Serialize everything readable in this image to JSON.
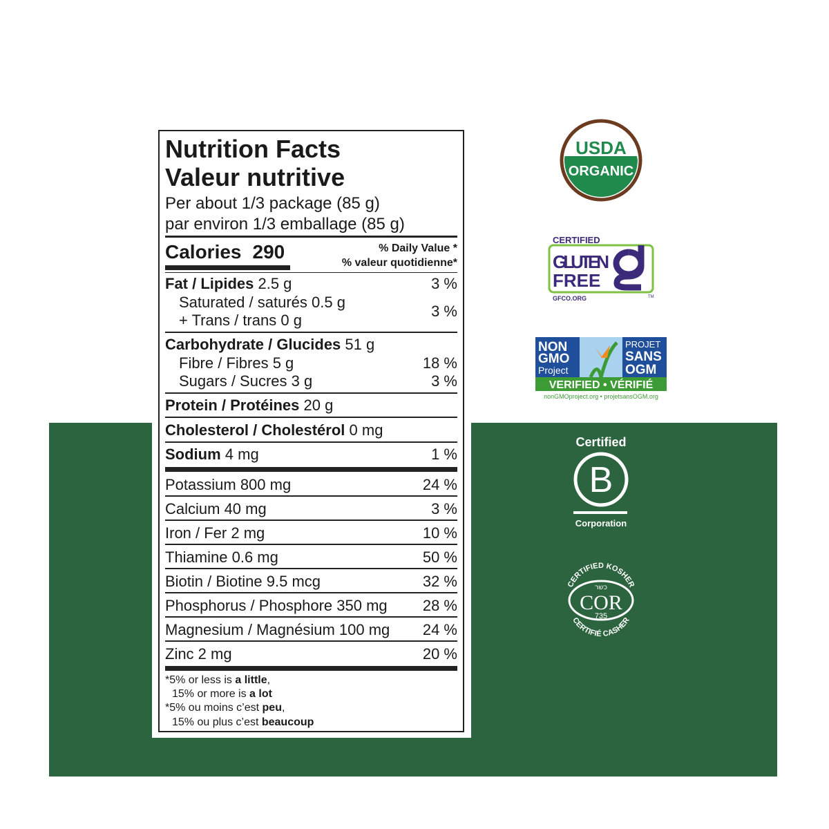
{
  "label": {
    "title_en": "Nutrition Facts",
    "title_fr": "Valeur nutritive",
    "serving_en": "Per about 1/3 package (85 g)",
    "serving_fr": "par environ 1/3 emballage (85 g)",
    "calories_label": "Calories",
    "calories_value": "290",
    "dv_en": "% Daily Value *",
    "dv_fr": "% valeur quotidienne*",
    "rows": [
      {
        "name": "Fat / Lipides",
        "amount": "2.5 g",
        "dv": "3 %"
      },
      {
        "name": "Saturated / saturés 0.5 g",
        "amount": "",
        "dv": "3 %"
      },
      {
        "name": "+ Trans / trans 0 g",
        "amount": "",
        "dv": ""
      },
      {
        "name": "Carbohydrate / Glucides",
        "amount": "51 g",
        "dv": ""
      },
      {
        "name": "Fibre / Fibres 5 g",
        "amount": "",
        "dv": "18 %"
      },
      {
        "name": "Sugars / Sucres 3 g",
        "amount": "",
        "dv": "3 %"
      },
      {
        "name": "Protein / Protéines",
        "amount": "20 g",
        "dv": ""
      },
      {
        "name": "Cholesterol / Cholestérol",
        "amount": "0 mg",
        "dv": ""
      },
      {
        "name": "Sodium",
        "amount": "4 mg",
        "dv": "1 %"
      },
      {
        "name": "Potassium 800 mg",
        "amount": "",
        "dv": "24 %"
      },
      {
        "name": "Calcium 40 mg",
        "amount": "",
        "dv": "3 %"
      },
      {
        "name": "Iron / Fer 2 mg",
        "amount": "",
        "dv": "10 %"
      },
      {
        "name": "Thiamine 0.6 mg",
        "amount": "",
        "dv": "50 %"
      },
      {
        "name": "Biotin / Biotine 9.5 mcg",
        "amount": "",
        "dv": "32 %"
      },
      {
        "name": "Phosphorus / Phosphore 350 mg",
        "amount": "",
        "dv": "28 %"
      },
      {
        "name": "Magnesium / Magnésium 100 mg",
        "amount": "",
        "dv": "24 %"
      },
      {
        "name": "Zinc 2 mg",
        "amount": "",
        "dv": "20 %"
      }
    ],
    "footnotes": [
      {
        "pre": "*5% or less is ",
        "bold": "a little",
        "post": ","
      },
      {
        "pre": "15% or more is ",
        "bold": "a lot",
        "post": ""
      },
      {
        "pre": "*5% ou moins c’est ",
        "bold": "peu",
        "post": ","
      },
      {
        "pre": "15% ou plus c’est ",
        "bold": "beaucoup",
        "post": ""
      }
    ]
  },
  "logos": {
    "usda": {
      "top": "USDA",
      "bottom": "ORGANIC"
    },
    "gluten": {
      "certified": "CERTIFIED",
      "line1": "GLUTEN",
      "line2": "FREE",
      "url": "GFCO.ORG",
      "tm": "TM"
    },
    "nongmo": {
      "l1": "NON",
      "l2": "GMO",
      "l3": "Project",
      "r1": "PROJET",
      "r2": "SANS",
      "r3": "OGM",
      "verified": "VERIFIED • VÉRIFIÉ",
      "url": "nonGMOproject.org • projetsansOGM.org"
    },
    "bcorp": {
      "top": "Certified",
      "letter": "B",
      "bottom": "Corporation"
    },
    "kosher": {
      "arc_top": "CERTIFIED KOSHER",
      "hebrew": "כשר",
      "mark": "COR",
      "number": "735",
      "arc_bottom": "CERTIFIÉ CASHER"
    }
  },
  "colors": {
    "band": "#2d6440",
    "usda_green": "#1f8a4c",
    "usda_brown": "#6b3a1f",
    "gluten_purple": "#3b2a7a",
    "gluten_green": "#7dc242",
    "nongmo_blue": "#1f4e9a",
    "nongmo_green": "#3d9b35"
  }
}
